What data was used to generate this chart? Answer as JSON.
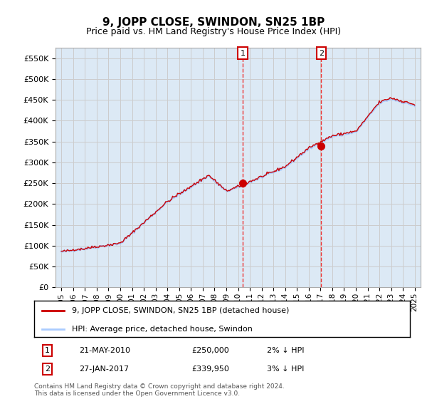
{
  "title": "9, JOPP CLOSE, SWINDON, SN25 1BP",
  "subtitle": "Price paid vs. HM Land Registry's House Price Index (HPI)",
  "ytick_values": [
    0,
    50000,
    100000,
    150000,
    200000,
    250000,
    300000,
    350000,
    400000,
    450000,
    500000,
    550000
  ],
  "ylim": [
    0,
    575000
  ],
  "xlim_start": 1994.5,
  "xlim_end": 2025.5,
  "sale1_x": 2010.385,
  "sale1_y": 250000,
  "sale1_label": "1",
  "sale2_x": 2017.07,
  "sale2_y": 339950,
  "sale2_label": "2",
  "property_line_color": "#cc0000",
  "hpi_line_color": "#aaccff",
  "sale_dot_color": "#cc0000",
  "vline_color": "#ee3333",
  "grid_color": "#cccccc",
  "plot_bg_color": "#dce9f5",
  "footer_text": "Contains HM Land Registry data © Crown copyright and database right 2024.\nThis data is licensed under the Open Government Licence v3.0.",
  "legend_line1": "9, JOPP CLOSE, SWINDON, SN25 1BP (detached house)",
  "legend_line2": "HPI: Average price, detached house, Swindon",
  "ann1_date": "21-MAY-2010",
  "ann1_price": "£250,000",
  "ann1_hpi": "2% ↓ HPI",
  "ann2_date": "27-JAN-2017",
  "ann2_price": "£339,950",
  "ann2_hpi": "3% ↓ HPI"
}
